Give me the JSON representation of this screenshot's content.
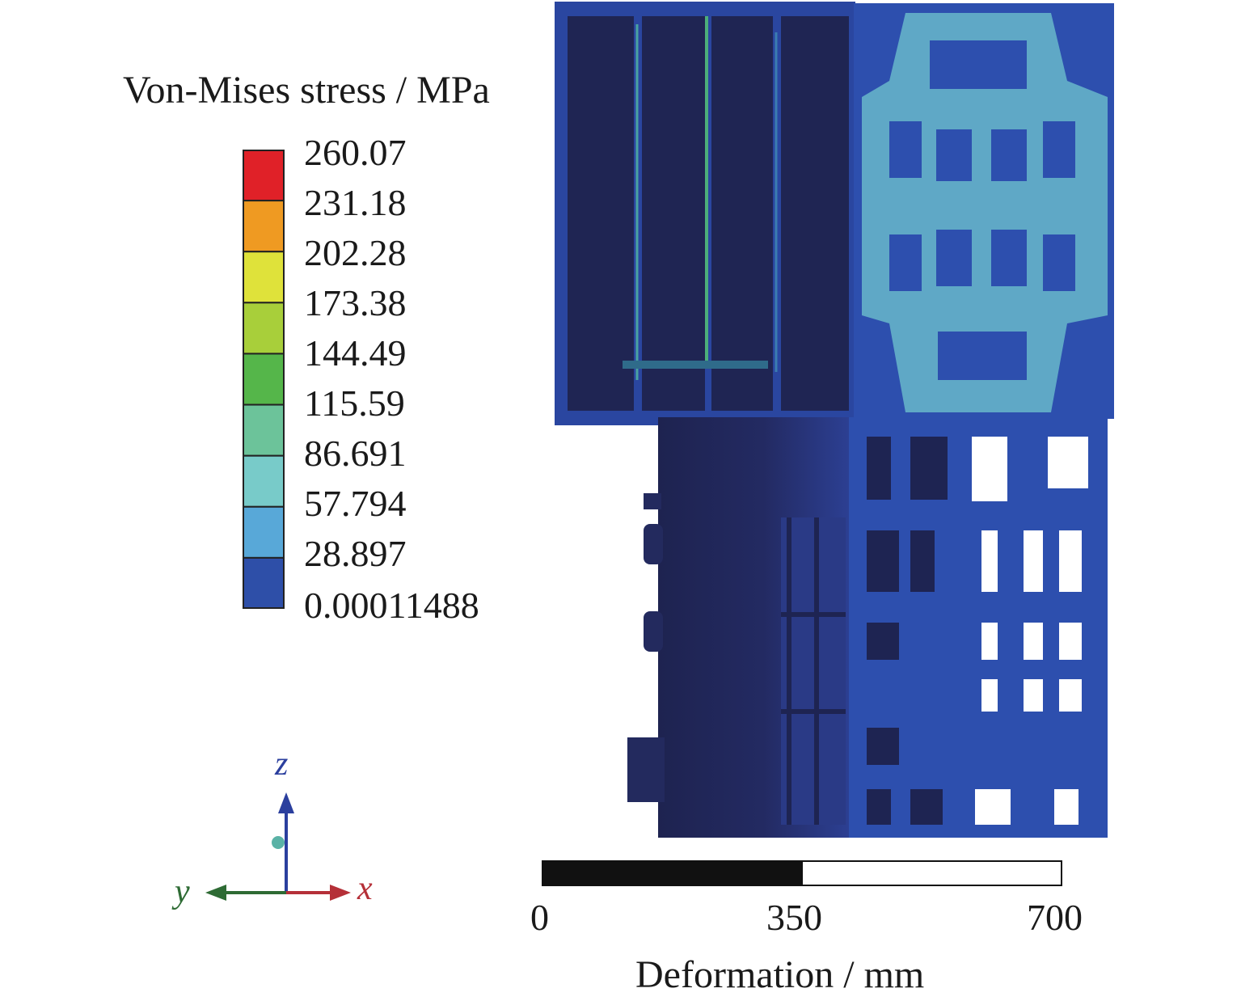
{
  "legend": {
    "title": "Von-Mises stress / MPa",
    "ticks": [
      "260.07",
      "231.18",
      "202.28",
      "173.38",
      "144.49",
      "115.59",
      "86.691",
      "57.794",
      "28.897",
      "0.00011488"
    ],
    "band_colors": [
      "#e02128",
      "#ef9a22",
      "#dfe23a",
      "#a8cf3a",
      "#55b64a",
      "#6cc39a",
      "#78cbc9",
      "#58a8d8",
      "#2e4fa8"
    ]
  },
  "scale": {
    "title": "Deformation / mm",
    "labels": [
      "0",
      "350",
      "700"
    ]
  },
  "triad": {
    "z": "z",
    "y": "y",
    "x": "x"
  },
  "colors": {
    "model_dark": "#1e2452",
    "model_blue": "#2d4fae",
    "model_light": "#5fa8c6",
    "z_axis": "#2b3f9e",
    "y_axis": "#2e6b34",
    "x_axis": "#b53038"
  }
}
